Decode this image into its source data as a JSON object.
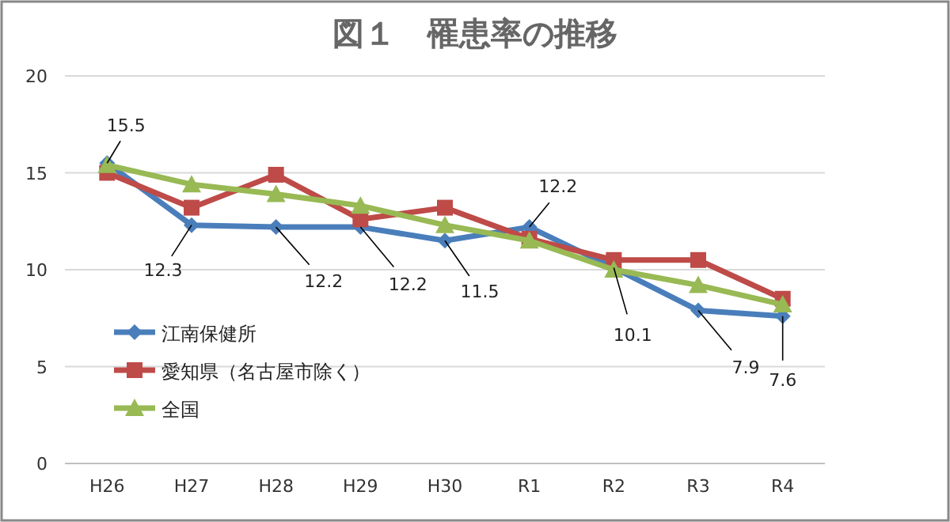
{
  "chart_data": {
    "type": "line",
    "title": "図１　罹患率の推移",
    "categories": [
      "H26",
      "H27",
      "H28",
      "H29",
      "H30",
      "R1",
      "R2",
      "R3",
      "R4"
    ],
    "series": [
      {
        "name": "江南保健所",
        "color": "#4a7ebb",
        "marker": "diamond",
        "values": [
          15.5,
          12.3,
          12.2,
          12.2,
          11.5,
          12.2,
          10.1,
          7.9,
          7.6
        ],
        "value_labels": [
          "15.5",
          "12.3",
          "12.2",
          "12.2",
          "11.5",
          "12.2",
          "10.1",
          "7.9",
          "7.6"
        ]
      },
      {
        "name": "愛知県（名古屋市除く）",
        "color": "#be4b48",
        "marker": "square",
        "values": [
          15.0,
          13.2,
          14.9,
          12.6,
          13.2,
          11.6,
          10.5,
          10.5,
          8.5
        ]
      },
      {
        "name": "全国",
        "color": "#98b954",
        "marker": "triangle",
        "values": [
          15.4,
          14.4,
          13.9,
          13.3,
          12.3,
          11.5,
          10.0,
          9.2,
          8.2
        ]
      }
    ],
    "ylim": [
      0,
      20
    ],
    "yticks": [
      0,
      5,
      10,
      15,
      20
    ],
    "grid": "y",
    "legend": "left"
  }
}
